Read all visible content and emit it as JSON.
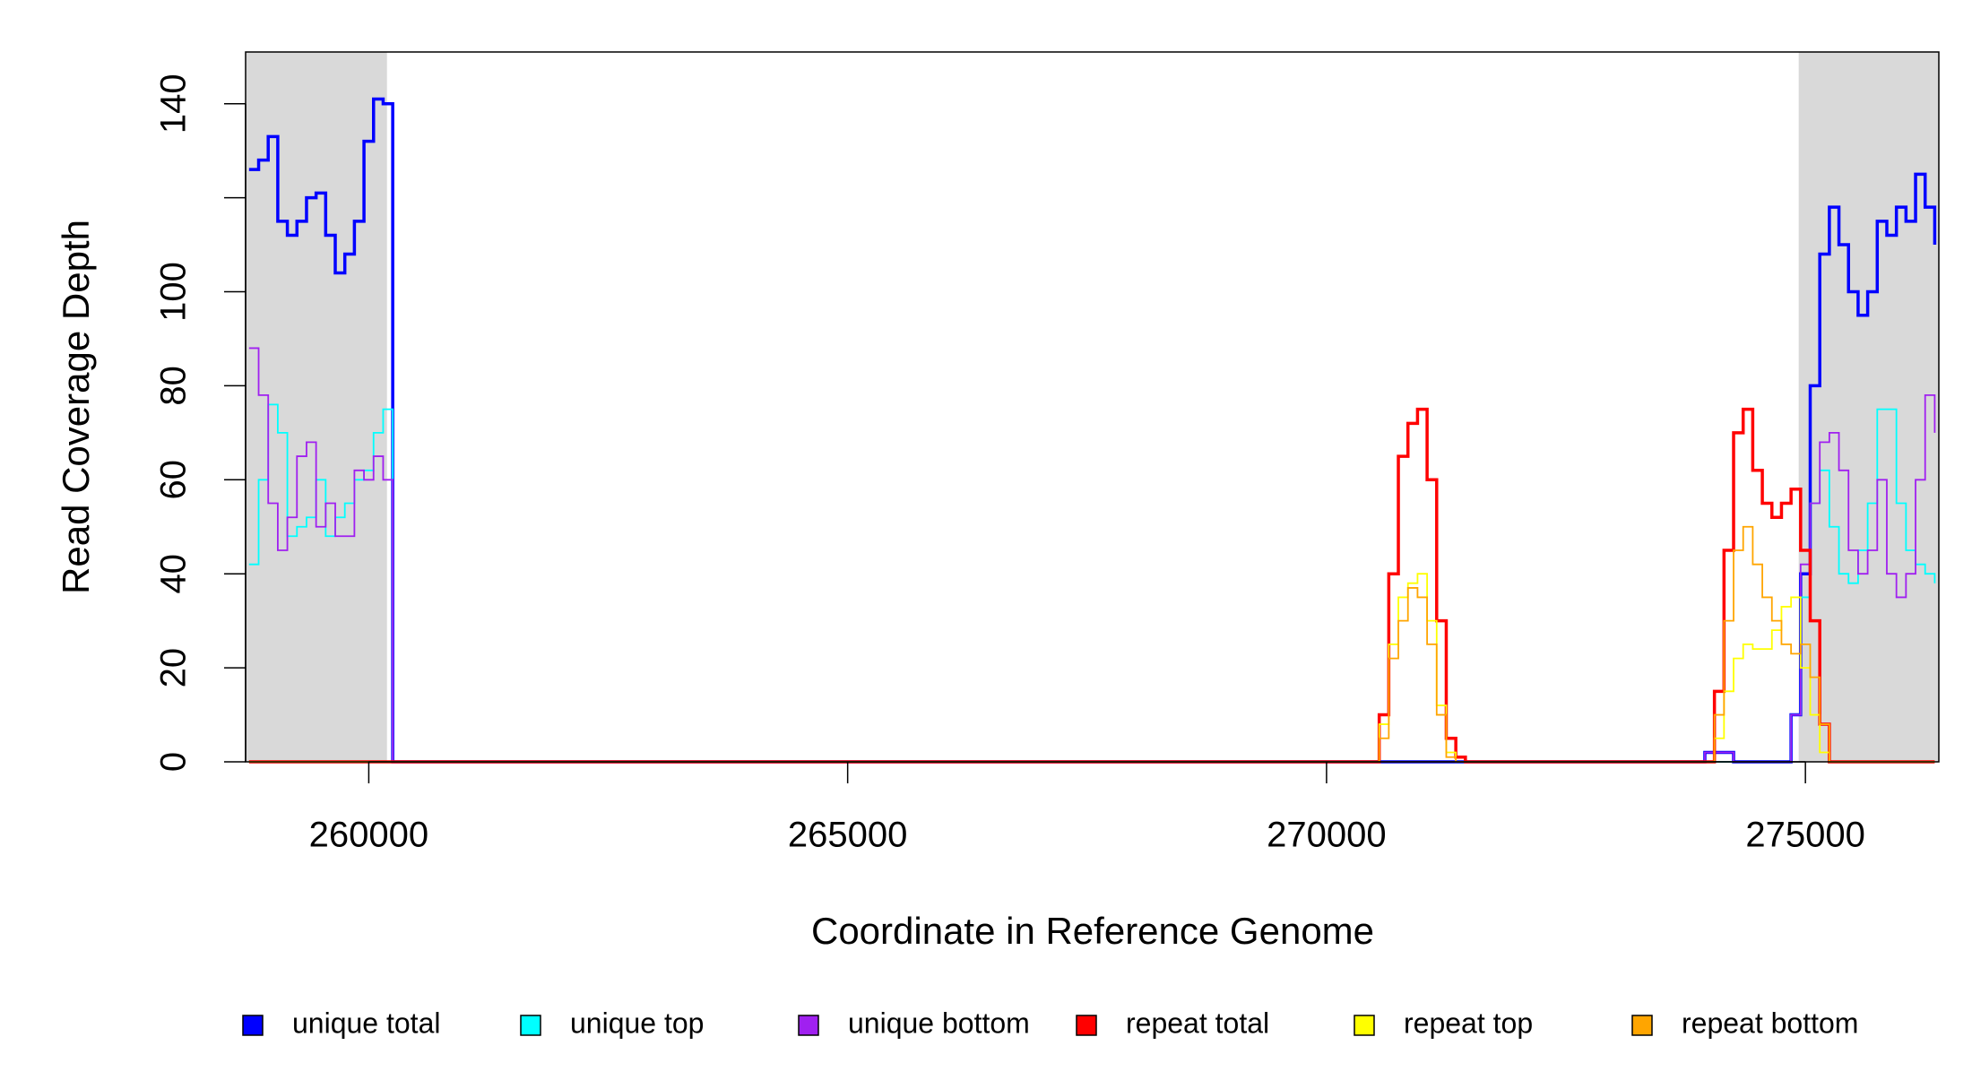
{
  "chart_data": {
    "type": "line",
    "step": true,
    "xlabel": "Coordinate in Reference Genome",
    "ylabel": "Read Coverage Depth",
    "xlim": [
      258714,
      276393
    ],
    "ylim": [
      0,
      151
    ],
    "xticks": [
      260000,
      265000,
      270000,
      275000
    ],
    "yticks": [
      0,
      20,
      40,
      60,
      80,
      100,
      {
        "value": 120,
        "label": null
      },
      140
    ],
    "shaded_regions": [
      [
        258714,
        260190
      ],
      [
        274930,
        276393
      ]
    ],
    "shade_color": "#d9d9d9",
    "legend_position": "bottom",
    "x": [
      258750,
      258850,
      258950,
      259050,
      259150,
      259250,
      259350,
      259450,
      259550,
      259650,
      259750,
      259850,
      259950,
      260050,
      260150,
      260250,
      270550,
      270650,
      270750,
      270850,
      270950,
      271050,
      271150,
      271250,
      271350,
      271450,
      271550,
      273950,
      274050,
      274150,
      274250,
      274350,
      274450,
      274550,
      274650,
      274750,
      274850,
      274950,
      275050,
      275150,
      275250,
      275350,
      275450,
      275550,
      275650,
      275750,
      275850,
      275950,
      276050,
      276150,
      276250,
      276350
    ],
    "series": [
      {
        "name": "unique total",
        "color": "#0000ff",
        "values": [
          126,
          128,
          133,
          115,
          112,
          115,
          120,
          121,
          112,
          104,
          108,
          115,
          132,
          141,
          140,
          0,
          0,
          0,
          0,
          0,
          0,
          0,
          0,
          0,
          0,
          0,
          0,
          2,
          2,
          2,
          0,
          0,
          0,
          0,
          0,
          0,
          10,
          40,
          80,
          108,
          118,
          110,
          100,
          95,
          100,
          115,
          112,
          118,
          115,
          125,
          118,
          110
        ]
      },
      {
        "name": "unique top",
        "color": "#00ffff",
        "values": [
          42,
          60,
          76,
          70,
          48,
          50,
          52,
          60,
          48,
          52,
          55,
          60,
          62,
          70,
          75,
          0,
          0,
          0,
          0,
          0,
          0,
          0,
          0,
          0,
          0,
          0,
          0,
          0,
          0,
          0,
          0,
          0,
          0,
          0,
          0,
          0,
          10,
          35,
          55,
          62,
          50,
          40,
          38,
          45,
          55,
          75,
          75,
          55,
          45,
          42,
          40,
          38
        ]
      },
      {
        "name": "unique bottom",
        "color": "#a020f0",
        "values": [
          88,
          78,
          55,
          45,
          52,
          65,
          68,
          50,
          55,
          48,
          48,
          62,
          60,
          65,
          60,
          0,
          0,
          0,
          0,
          0,
          0,
          0,
          0,
          0,
          0,
          0,
          0,
          2,
          2,
          2,
          0,
          0,
          0,
          0,
          0,
          0,
          10,
          42,
          55,
          68,
          70,
          62,
          45,
          40,
          45,
          60,
          40,
          35,
          40,
          60,
          78,
          70
        ]
      },
      {
        "name": "repeat total",
        "color": "#ff0000",
        "values": [
          0,
          0,
          0,
          0,
          0,
          0,
          0,
          0,
          0,
          0,
          0,
          0,
          0,
          0,
          0,
          0,
          10,
          40,
          65,
          72,
          75,
          60,
          30,
          5,
          1,
          0,
          0,
          0,
          15,
          45,
          70,
          75,
          62,
          55,
          52,
          55,
          58,
          45,
          30,
          8,
          0,
          0,
          0,
          0,
          0,
          0,
          0,
          0,
          0,
          0,
          0,
          0
        ]
      },
      {
        "name": "repeat top",
        "color": "#ffff00",
        "values": [
          0,
          0,
          0,
          0,
          0,
          0,
          0,
          0,
          0,
          0,
          0,
          0,
          0,
          0,
          0,
          0,
          8,
          25,
          35,
          38,
          40,
          30,
          12,
          2,
          0,
          0,
          0,
          0,
          5,
          15,
          22,
          25,
          24,
          24,
          28,
          33,
          35,
          20,
          10,
          2,
          0,
          0,
          0,
          0,
          0,
          0,
          0,
          0,
          0,
          0,
          0,
          0
        ]
      },
      {
        "name": "repeat bottom",
        "color": "#ffa500",
        "values": [
          0,
          0,
          0,
          0,
          0,
          0,
          0,
          0,
          0,
          0,
          0,
          0,
          0,
          0,
          0,
          0,
          5,
          22,
          30,
          37,
          35,
          25,
          10,
          1,
          0,
          0,
          0,
          0,
          10,
          30,
          45,
          50,
          42,
          35,
          30,
          25,
          23,
          25,
          18,
          8,
          0,
          0,
          0,
          0,
          0,
          0,
          0,
          0,
          0,
          0,
          0,
          0
        ]
      }
    ]
  }
}
